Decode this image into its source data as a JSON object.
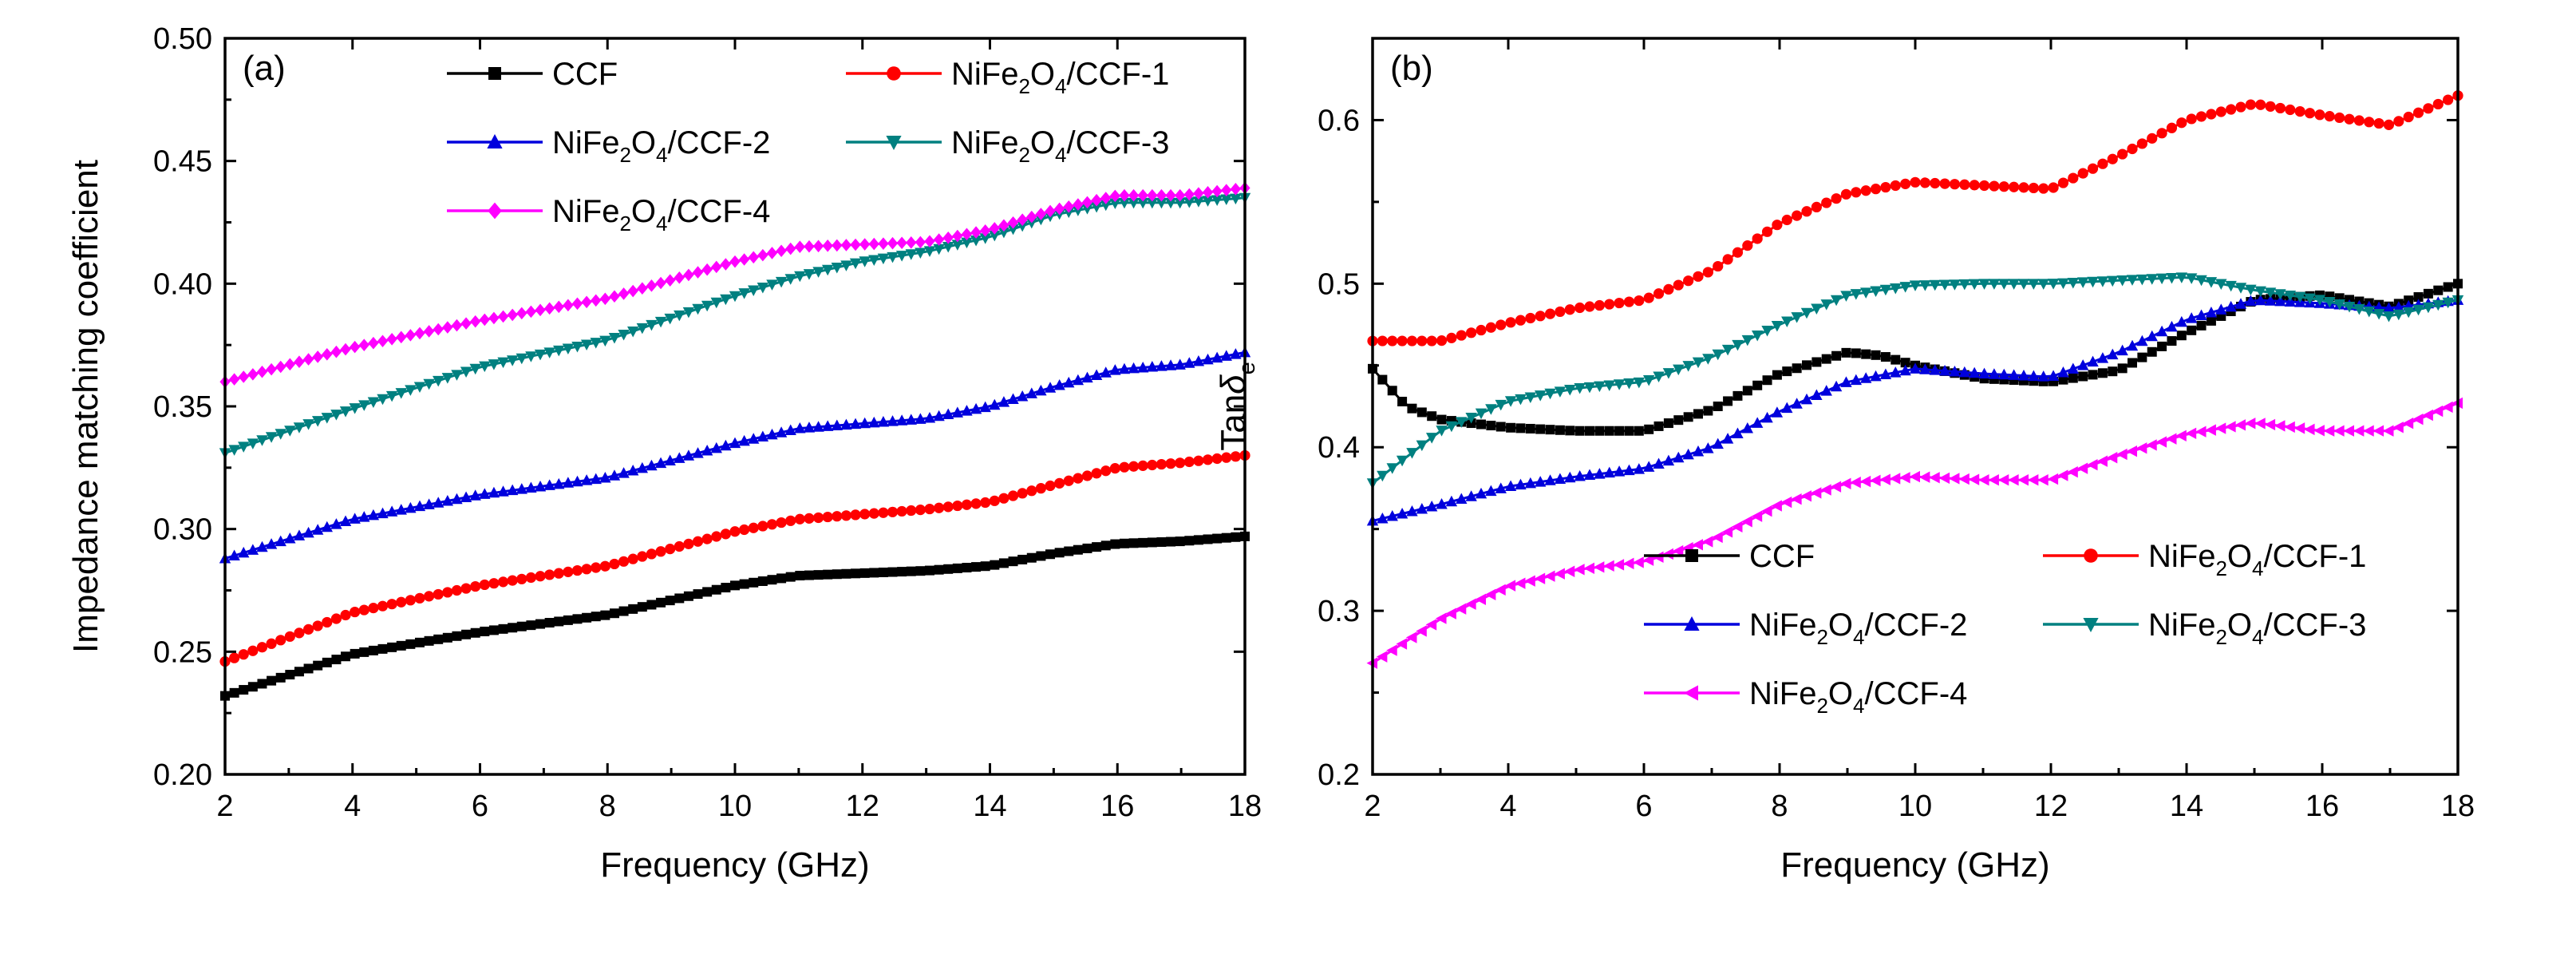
{
  "chart_data": [
    {
      "type": "line",
      "panel_label": "(a)",
      "xlabel": "Frequency (GHz)",
      "ylabel": "Impedance matching coefficient",
      "xlim": [
        2,
        18
      ],
      "ylim": [
        0.2,
        0.5
      ],
      "xticks": [
        2,
        4,
        6,
        8,
        10,
        12,
        14,
        16,
        18
      ],
      "yticks": [
        0.2,
        0.25,
        0.3,
        0.35,
        0.4,
        0.45,
        0.5
      ],
      "ytick_labels": [
        "0.20",
        "0.25",
        "0.30",
        "0.35",
        "0.40",
        "0.45",
        "0.50"
      ],
      "legend_position": "top",
      "series": [
        {
          "name": "CCF",
          "label_parts": [
            [
              "CCF"
            ]
          ],
          "color": "#000000",
          "marker": "square",
          "linestyle": "solid",
          "x": [
            2,
            4,
            6,
            8,
            10,
            11,
            12,
            13,
            14,
            15,
            16,
            17,
            18
          ],
          "y": [
            0.232,
            0.249,
            0.258,
            0.265,
            0.277,
            0.281,
            0.282,
            0.283,
            0.285,
            0.29,
            0.294,
            0.295,
            0.297
          ]
        },
        {
          "name": "NiFe2O4/CCF-1",
          "label_parts": [
            [
              "NiFe"
            ],
            [
              "2",
              "sub"
            ],
            [
              "O"
            ],
            [
              "4",
              "sub"
            ],
            [
              "/CCF-1"
            ]
          ],
          "color": "#ff0000",
          "marker": "circle",
          "linestyle": "solid",
          "x": [
            2,
            4,
            6,
            8,
            10,
            11,
            12,
            13,
            14,
            15,
            16,
            17,
            18
          ],
          "y": [
            0.246,
            0.266,
            0.277,
            0.285,
            0.299,
            0.304,
            0.306,
            0.308,
            0.311,
            0.318,
            0.325,
            0.327,
            0.33
          ]
        },
        {
          "name": "NiFe2O4/CCF-2",
          "label_parts": [
            [
              "NiFe"
            ],
            [
              "2",
              "sub"
            ],
            [
              "O"
            ],
            [
              "4",
              "sub"
            ],
            [
              "/CCF-2"
            ]
          ],
          "color": "#0000dd",
          "marker": "triangle-up",
          "linestyle": "solid",
          "x": [
            2,
            4,
            6,
            8,
            10,
            11,
            12,
            13,
            14,
            15,
            16,
            17,
            18
          ],
          "y": [
            0.288,
            0.304,
            0.314,
            0.321,
            0.335,
            0.341,
            0.343,
            0.345,
            0.35,
            0.358,
            0.365,
            0.367,
            0.372
          ]
        },
        {
          "name": "NiFe2O4/CCF-3",
          "label_parts": [
            [
              "NiFe"
            ],
            [
              "2",
              "sub"
            ],
            [
              "O"
            ],
            [
              "4",
              "sub"
            ],
            [
              "/CCF-3"
            ]
          ],
          "color": "#008080",
          "marker": "triangle-down",
          "linestyle": "solid",
          "x": [
            2,
            4,
            6,
            8,
            10,
            11,
            12,
            13,
            14,
            15,
            16,
            17,
            18
          ],
          "y": [
            0.331,
            0.349,
            0.366,
            0.377,
            0.395,
            0.403,
            0.409,
            0.413,
            0.419,
            0.428,
            0.433,
            0.433,
            0.435
          ]
        },
        {
          "name": "NiFe2O4/CCF-4",
          "label_parts": [
            [
              "NiFe"
            ],
            [
              "2",
              "sub"
            ],
            [
              "O"
            ],
            [
              "4",
              "sub"
            ],
            [
              "/CCF-4"
            ]
          ],
          "color": "#ff00ff",
          "marker": "diamond",
          "linestyle": "solid",
          "x": [
            2,
            4,
            6,
            8,
            10,
            11,
            12,
            13,
            14,
            15,
            16,
            17,
            18
          ],
          "y": [
            0.36,
            0.374,
            0.385,
            0.394,
            0.409,
            0.415,
            0.416,
            0.417,
            0.422,
            0.43,
            0.436,
            0.436,
            0.439
          ]
        }
      ]
    },
    {
      "type": "line",
      "panel_label": "(b)",
      "xlabel": "Frequency (GHz)",
      "ylabel_parts": [
        [
          "Tan"
        ],
        [
          "δ",
          "italic"
        ],
        [
          "e",
          "sub"
        ]
      ],
      "xlim": [
        2,
        18
      ],
      "ylim": [
        0.2,
        0.65
      ],
      "xticks": [
        2,
        4,
        6,
        8,
        10,
        12,
        14,
        16,
        18
      ],
      "yticks": [
        0.2,
        0.3,
        0.4,
        0.5,
        0.6
      ],
      "ytick_labels": [
        "0.2",
        "0.3",
        "0.4",
        "0.5",
        "0.6"
      ],
      "legend_position": "bottom-right",
      "series": [
        {
          "name": "CCF",
          "label_parts": [
            [
              "CCF"
            ]
          ],
          "color": "#000000",
          "marker": "square",
          "linestyle": "solid",
          "x": [
            2,
            2.5,
            3,
            4,
            5,
            6,
            7,
            8,
            9,
            9.5,
            10,
            11,
            12,
            13,
            14,
            15,
            16,
            17,
            18
          ],
          "y": [
            0.448,
            0.425,
            0.417,
            0.412,
            0.41,
            0.41,
            0.423,
            0.445,
            0.458,
            0.456,
            0.45,
            0.442,
            0.44,
            0.447,
            0.47,
            0.49,
            0.493,
            0.486,
            0.5
          ]
        },
        {
          "name": "NiFe2O4/CCF-1",
          "label_parts": [
            [
              "NiFe"
            ],
            [
              "2",
              "sub"
            ],
            [
              "O"
            ],
            [
              "4",
              "sub"
            ],
            [
              "/CCF-1"
            ]
          ],
          "color": "#ff0000",
          "marker": "circle",
          "linestyle": "solid",
          "x": [
            2,
            3,
            4,
            5,
            6,
            7,
            8,
            9,
            10,
            11,
            12,
            13,
            14,
            15,
            16,
            17,
            18
          ],
          "y": [
            0.465,
            0.465,
            0.476,
            0.485,
            0.49,
            0.508,
            0.537,
            0.555,
            0.562,
            0.56,
            0.558,
            0.578,
            0.6,
            0.61,
            0.603,
            0.597,
            0.615
          ]
        },
        {
          "name": "NiFe2O4/CCF-2",
          "label_parts": [
            [
              "NiFe"
            ],
            [
              "2",
              "sub"
            ],
            [
              "O"
            ],
            [
              "4",
              "sub"
            ],
            [
              "/CCF-2"
            ]
          ],
          "color": "#0000dd",
          "marker": "triangle-up",
          "linestyle": "solid",
          "x": [
            2,
            3,
            4,
            5,
            6,
            7,
            8,
            9,
            10,
            11,
            12,
            13,
            14,
            15,
            16,
            17,
            18
          ],
          "y": [
            0.355,
            0.365,
            0.376,
            0.382,
            0.387,
            0.4,
            0.422,
            0.44,
            0.448,
            0.445,
            0.443,
            0.458,
            0.478,
            0.49,
            0.488,
            0.485,
            0.49
          ]
        },
        {
          "name": "NiFe2O4/CCF-3",
          "label_parts": [
            [
              "NiFe"
            ],
            [
              "2",
              "sub"
            ],
            [
              "O"
            ],
            [
              "4",
              "sub"
            ],
            [
              "/CCF-3"
            ]
          ],
          "color": "#008080",
          "marker": "triangle-down",
          "linestyle": "solid",
          "x": [
            2,
            3,
            4,
            5,
            6,
            7,
            8,
            9,
            10,
            11,
            12,
            13,
            14,
            15,
            16,
            17,
            18
          ],
          "y": [
            0.378,
            0.41,
            0.428,
            0.436,
            0.44,
            0.455,
            0.475,
            0.493,
            0.499,
            0.5,
            0.5,
            0.502,
            0.504,
            0.496,
            0.49,
            0.48,
            0.49
          ]
        },
        {
          "name": "NiFe2O4/CCF-4",
          "label_parts": [
            [
              "NiFe"
            ],
            [
              "2",
              "sub"
            ],
            [
              "O"
            ],
            [
              "4",
              "sub"
            ],
            [
              "/CCF-4"
            ]
          ],
          "color": "#ff00ff",
          "marker": "triangle-left",
          "linestyle": "solid",
          "x": [
            2,
            3,
            4,
            5,
            6,
            7,
            8,
            9,
            10,
            11,
            12,
            13,
            14,
            15,
            16,
            17,
            18
          ],
          "y": [
            0.268,
            0.295,
            0.315,
            0.325,
            0.33,
            0.343,
            0.365,
            0.378,
            0.382,
            0.38,
            0.38,
            0.395,
            0.408,
            0.415,
            0.41,
            0.41,
            0.427
          ]
        }
      ]
    }
  ]
}
